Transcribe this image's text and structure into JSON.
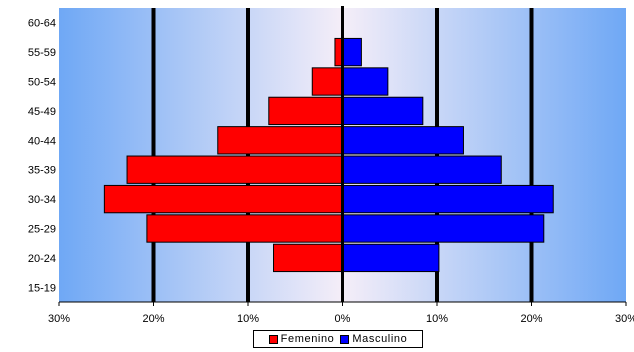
{
  "chart_data": {
    "type": "bar",
    "orientation": "horizontal-population-pyramid",
    "categories": [
      "60-64",
      "55-59",
      "50-54",
      "45-49",
      "40-44",
      "35-39",
      "30-34",
      "25-29",
      "20-24",
      "15-19"
    ],
    "series": [
      {
        "name": "Femenino",
        "color": "#ff0000",
        "values": [
          0,
          0.8,
          3.2,
          7.8,
          13.2,
          22.8,
          25.2,
          20.7,
          7.3,
          0
        ]
      },
      {
        "name": "Masculino",
        "color": "#0000ff",
        "values": [
          0,
          2.0,
          4.8,
          8.5,
          12.8,
          16.8,
          22.3,
          21.3,
          10.2,
          0
        ]
      }
    ],
    "xlim": [
      -30,
      30
    ],
    "x_ticks": [
      "30%",
      "20%",
      "10%",
      "0%",
      "10%",
      "20%",
      "30%"
    ],
    "gridlines": "vertical",
    "legend_position": "bottom-center",
    "background": {
      "edge": "#6fa8f5",
      "center": "#f5eef8"
    }
  },
  "legend": {
    "female": "Femenino",
    "male": "Masculino"
  }
}
